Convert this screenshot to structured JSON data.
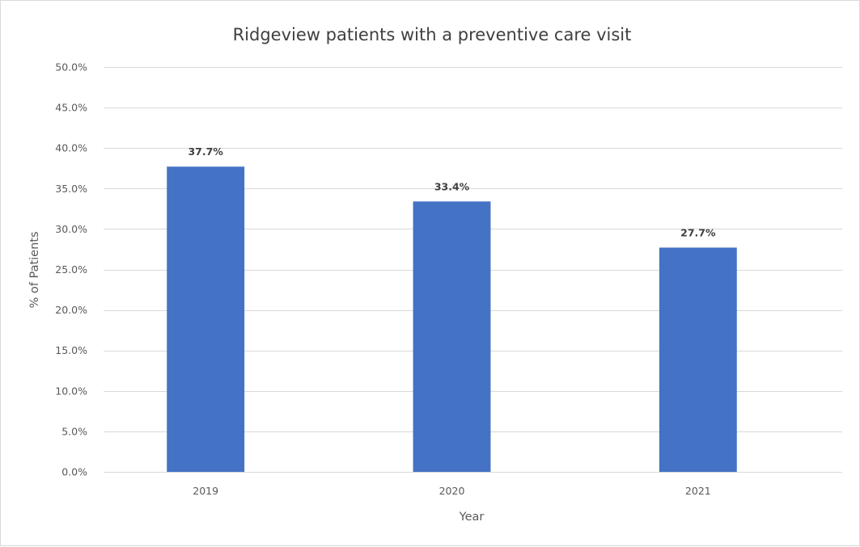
{
  "chart_data": {
    "type": "bar",
    "title": "Ridgeview patients with a preventive care visit",
    "xlabel": "Year",
    "ylabel": "% of Patients",
    "categories": [
      "2019",
      "2020",
      "2021"
    ],
    "values": [
      37.7,
      33.4,
      27.7
    ],
    "data_labels": [
      "37.7%",
      "33.4%",
      "27.7%"
    ],
    "ylim": [
      0,
      50
    ],
    "y_ticks": [
      0,
      5,
      10,
      15,
      20,
      25,
      30,
      35,
      40,
      45,
      50
    ],
    "y_tick_labels": [
      "0.0%",
      "5.0%",
      "10.0%",
      "15.0%",
      "20.0%",
      "25.0%",
      "30.0%",
      "35.0%",
      "40.0%",
      "45.0%",
      "50.0%"
    ],
    "bar_color": "#4472c4",
    "grid": true,
    "legend": "none"
  }
}
